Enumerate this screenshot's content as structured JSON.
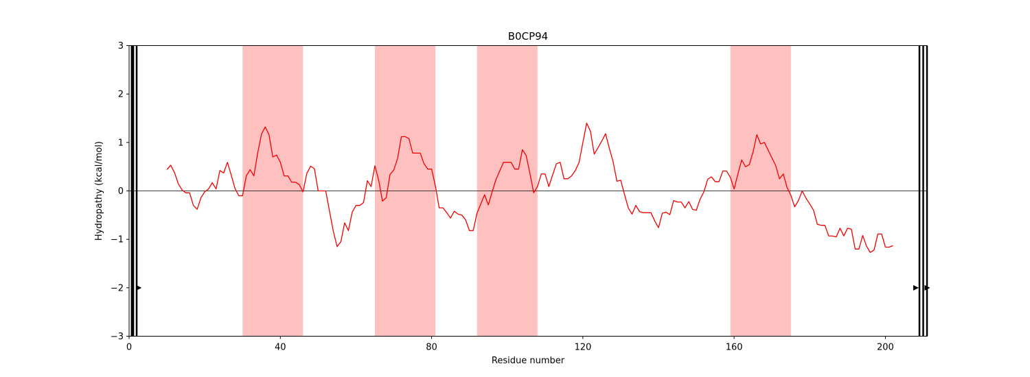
{
  "chart_data": {
    "type": "line",
    "title": "B0CP94",
    "xlabel": "Residue number",
    "ylabel": "Hydropathy (kcal/mol)",
    "xlim": [
      0,
      211
    ],
    "ylim": [
      -3,
      3
    ],
    "xticks": [
      0,
      40,
      80,
      120,
      160,
      200
    ],
    "yticks": [
      -3,
      -2,
      -1,
      0,
      1,
      2,
      3
    ],
    "grid": false,
    "baseline": 0,
    "colors": {
      "line": "#ee0000",
      "band": "#ffc0c0",
      "baseline": "#000000"
    },
    "highlight_regions": [
      [
        30,
        46
      ],
      [
        65,
        81
      ],
      [
        92,
        108
      ],
      [
        159,
        175
      ]
    ],
    "vertical_markers": [
      0.7,
      1.1,
      2,
      209,
      210,
      211
    ],
    "arrow_markers": [
      {
        "x": 2.5,
        "y": -2,
        "direction": "right"
      },
      {
        "x": 208,
        "y": -2,
        "direction": "right"
      },
      {
        "x": 211,
        "y": -2,
        "direction": "right"
      }
    ],
    "series": [
      {
        "x": [
          10,
          11,
          12,
          13,
          14,
          15,
          16,
          17,
          18,
          19,
          20,
          21,
          22,
          23,
          24,
          25,
          26,
          27,
          28,
          29,
          30,
          31,
          32,
          33,
          34,
          35,
          36,
          37,
          38,
          39,
          40,
          41,
          42,
          43,
          44,
          45,
          46,
          47,
          48,
          49,
          50,
          51,
          52,
          53,
          54,
          55,
          56,
          57,
          58,
          59,
          60,
          61,
          62,
          63,
          64,
          65,
          66,
          67,
          68,
          69,
          70,
          71,
          72,
          73,
          74,
          75,
          76,
          77,
          78,
          79,
          80,
          81,
          82,
          83,
          84,
          85,
          86,
          87,
          88,
          89,
          90,
          91,
          92,
          93,
          94,
          95,
          96,
          97,
          98,
          99,
          100,
          101,
          102,
          103,
          104,
          105,
          106,
          107,
          108,
          109,
          110,
          111,
          112,
          113,
          114,
          115,
          116,
          117,
          118,
          119,
          120,
          121,
          122,
          123,
          124,
          125,
          126,
          127,
          128,
          129,
          130,
          131,
          132,
          133,
          134,
          135,
          136,
          137,
          138,
          139,
          140,
          141,
          142,
          143,
          144,
          145,
          146,
          147,
          148,
          149,
          150,
          151,
          152,
          153,
          154,
          155,
          156,
          157,
          158,
          159,
          160,
          161,
          162,
          163,
          164,
          165,
          166,
          167,
          168,
          169,
          170,
          171,
          172,
          173,
          174,
          175,
          176,
          177,
          178,
          179,
          180,
          181,
          182,
          183,
          184,
          185,
          186,
          187,
          188,
          189,
          190,
          191,
          192,
          193,
          194,
          195,
          196,
          197,
          198,
          199,
          200,
          201,
          202
        ],
        "values": [
          0.44,
          0.53,
          0.38,
          0.15,
          0.02,
          -0.04,
          -0.04,
          -0.3,
          -0.38,
          -0.14,
          -0.02,
          0.04,
          0.17,
          0.04,
          0.42,
          0.37,
          0.59,
          0.33,
          0.05,
          -0.1,
          -0.1,
          0.31,
          0.44,
          0.31,
          0.78,
          1.17,
          1.32,
          1.16,
          0.7,
          0.74,
          0.59,
          0.31,
          0.31,
          0.18,
          0.18,
          0.13,
          -0.02,
          0.36,
          0.51,
          0.46,
          0.0,
          0.0,
          0.0,
          -0.42,
          -0.83,
          -1.15,
          -1.05,
          -0.66,
          -0.82,
          -0.44,
          -0.3,
          -0.3,
          -0.24,
          0.21,
          0.09,
          0.52,
          0.22,
          -0.21,
          -0.14,
          0.34,
          0.43,
          0.67,
          1.12,
          1.12,
          1.08,
          0.78,
          0.78,
          0.78,
          0.56,
          0.45,
          0.45,
          0.1,
          -0.35,
          -0.35,
          -0.45,
          -0.56,
          -0.42,
          -0.48,
          -0.5,
          -0.6,
          -0.82,
          -0.82,
          -0.46,
          -0.27,
          -0.08,
          -0.29,
          -0.02,
          0.23,
          0.41,
          0.59,
          0.59,
          0.59,
          0.45,
          0.45,
          0.85,
          0.73,
          0.36,
          -0.04,
          0.09,
          0.35,
          0.35,
          0.09,
          0.33,
          0.56,
          0.59,
          0.25,
          0.25,
          0.31,
          0.42,
          0.59,
          1.0,
          1.4,
          1.23,
          0.76,
          0.89,
          1.03,
          1.18,
          0.88,
          0.6,
          0.2,
          0.22,
          -0.07,
          -0.35,
          -0.48,
          -0.3,
          -0.43,
          -0.45,
          -0.45,
          -0.45,
          -0.62,
          -0.76,
          -0.46,
          -0.44,
          -0.49,
          -0.2,
          -0.23,
          -0.23,
          -0.35,
          -0.22,
          -0.38,
          -0.4,
          -0.17,
          -0.02,
          0.24,
          0.29,
          0.19,
          0.19,
          0.41,
          0.41,
          0.28,
          0.04,
          0.35,
          0.64,
          0.5,
          0.54,
          0.8,
          1.16,
          0.97,
          1.0,
          0.84,
          0.68,
          0.52,
          0.25,
          0.35,
          0.07,
          -0.09,
          -0.33,
          -0.2,
          0.0,
          -0.15,
          -0.27,
          -0.4,
          -0.69,
          -0.71,
          -0.71,
          -0.93,
          -0.93,
          -0.95,
          -0.77,
          -0.93,
          -0.77,
          -0.79,
          -1.2,
          -1.2,
          -0.92,
          -1.14,
          -1.27,
          -1.22,
          -0.89,
          -0.89,
          -1.16,
          -1.16,
          -1.13
        ]
      }
    ]
  }
}
